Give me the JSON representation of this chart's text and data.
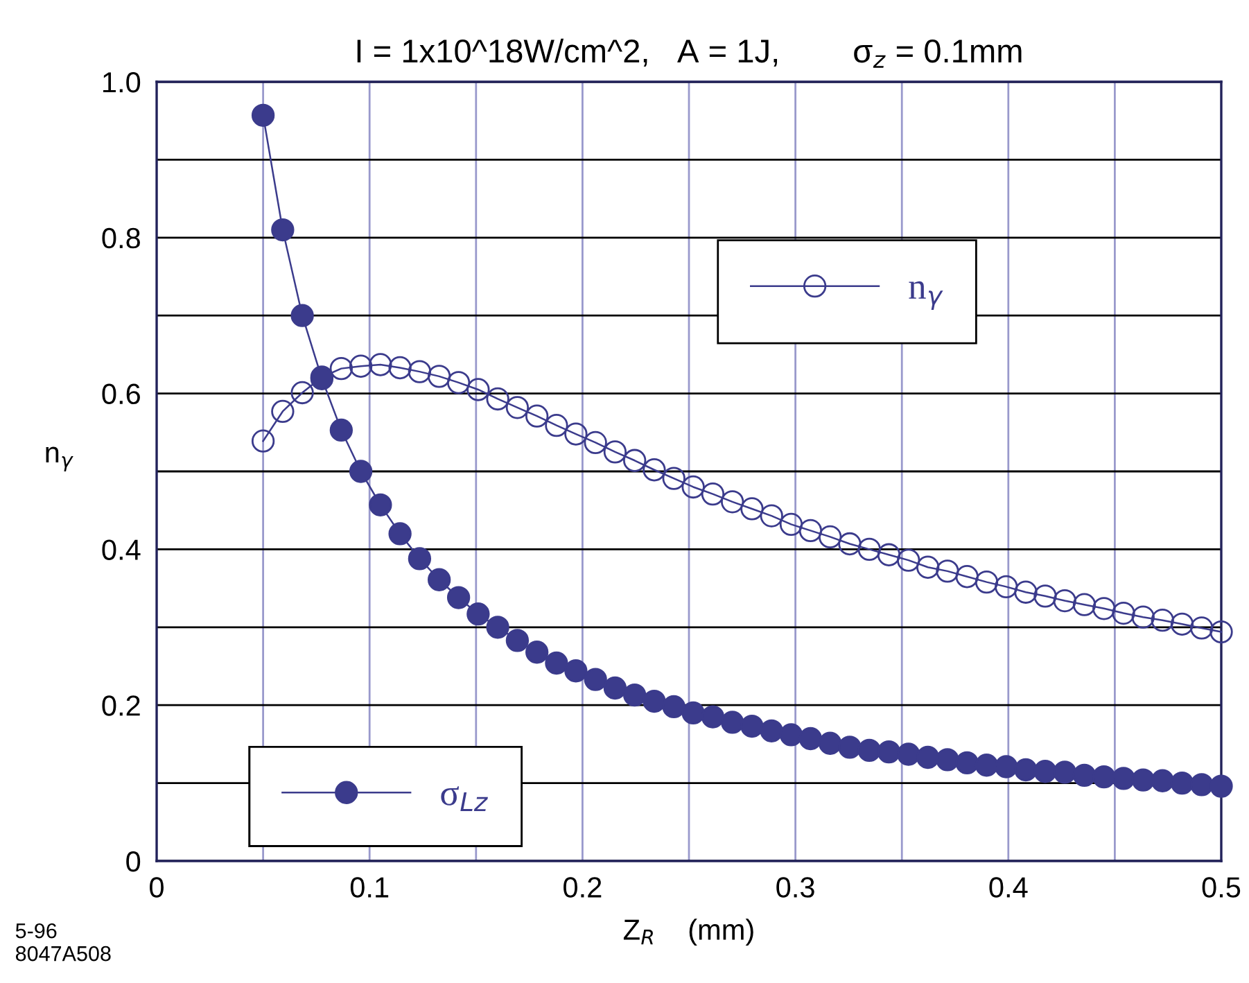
{
  "chart_data": {
    "type": "line",
    "title": "I = 1x10^18W/cm^2,   A = 1J,        σ$_{z}$ = 0.1mm",
    "xlabel": "Z$_{R}$    (mm)",
    "ylabel": "n$_{γ}$",
    "annotations": [
      "5-96\n8047A508"
    ],
    "x": [
      0.05,
      0.0592,
      0.0684,
      0.0776,
      0.0867,
      0.0959,
      0.1051,
      0.1143,
      0.1235,
      0.1327,
      0.1418,
      0.151,
      0.1602,
      0.1694,
      0.1786,
      0.1878,
      0.1969,
      0.2061,
      0.2153,
      0.2245,
      0.2337,
      0.2429,
      0.252,
      0.2612,
      0.2704,
      0.2796,
      0.2888,
      0.298,
      0.3071,
      0.3163,
      0.3255,
      0.3347,
      0.3439,
      0.3531,
      0.3622,
      0.3714,
      0.3806,
      0.3898,
      0.399,
      0.4082,
      0.4173,
      0.4265,
      0.4357,
      0.4449,
      0.4541,
      0.4633,
      0.4724,
      0.4816,
      0.4908,
      0.5
    ],
    "series": [
      {
        "name": "n$_{γ}$",
        "color": "#3b3b8c",
        "marker": "circle",
        "values": [
          0.539,
          0.577,
          0.601,
          0.621,
          0.632,
          0.635,
          0.637,
          0.633,
          0.628,
          0.622,
          0.614,
          0.605,
          0.593,
          0.582,
          0.571,
          0.559,
          0.548,
          0.537,
          0.525,
          0.514,
          0.502,
          0.491,
          0.48,
          0.471,
          0.461,
          0.452,
          0.443,
          0.432,
          0.424,
          0.416,
          0.407,
          0.4,
          0.393,
          0.386,
          0.377,
          0.372,
          0.365,
          0.358,
          0.352,
          0.345,
          0.34,
          0.334,
          0.329,
          0.324,
          0.318,
          0.313,
          0.309,
          0.304,
          0.299,
          0.294
        ]
      },
      {
        "name": "σ$_{Lz}$",
        "color": "#3b3b8c",
        "marker": "circle",
        "values": [
          0.957,
          0.81,
          0.7,
          0.619,
          0.553,
          0.5,
          0.457,
          0.42,
          0.388,
          0.361,
          0.338,
          0.317,
          0.3,
          0.283,
          0.268,
          0.254,
          0.244,
          0.233,
          0.222,
          0.213,
          0.205,
          0.198,
          0.19,
          0.185,
          0.178,
          0.173,
          0.167,
          0.162,
          0.157,
          0.151,
          0.146,
          0.142,
          0.14,
          0.137,
          0.133,
          0.13,
          0.126,
          0.123,
          0.121,
          0.117,
          0.115,
          0.114,
          0.11,
          0.108,
          0.106,
          0.104,
          0.103,
          0.1,
          0.098,
          0.096
        ]
      }
    ],
    "xlim": [
      0,
      0.5
    ],
    "ylim": [
      0,
      1.0
    ],
    "xticks": [
      0,
      {
        "value": 0.05,
        "label": null
      },
      0.1,
      {
        "value": 0.15,
        "label": null
      },
      0.2,
      {
        "value": 0.25,
        "label": null
      },
      0.3,
      {
        "value": 0.35,
        "label": null
      },
      0.4,
      {
        "value": 0.45,
        "label": null
      },
      0.5
    ],
    "yticks": [
      0,
      {
        "value": 0.1,
        "label": null
      },
      0.2,
      {
        "value": 0.3,
        "label": null
      },
      0.4,
      {
        "value": 0.5,
        "label": null
      },
      0.6,
      {
        "value": 0.7,
        "label": null
      },
      0.8,
      {
        "value": 0.9,
        "label": null
      },
      {
        "value": 1,
        "label": "1.0"
      }
    ],
    "grid": true,
    "legend": "bottom left",
    "line_style": "solid"
  }
}
